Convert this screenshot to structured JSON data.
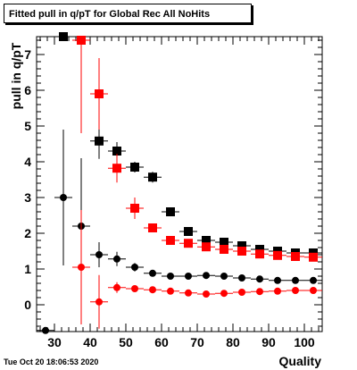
{
  "chart_data": {
    "type": "scatter",
    "title": "Fitted pull in q/pT for Global Rec All NoHits",
    "xlabel": "Quality",
    "ylabel": "pull in q/pT",
    "xlim": [
      25,
      105
    ],
    "ylim": [
      -0.75,
      7.5
    ],
    "xticks": [
      30,
      40,
      50,
      60,
      70,
      80,
      90,
      100
    ],
    "yticks": [
      0,
      1,
      2,
      3,
      4,
      5,
      6,
      7
    ],
    "grid": false,
    "series": [
      {
        "color": "#000000",
        "marker": "square",
        "points": [
          {
            "x": 32.5,
            "y": 7.5,
            "yerr": 0
          },
          {
            "x": 42.5,
            "y": 4.58,
            "yerr": 0.5
          },
          {
            "x": 47.5,
            "y": 4.3,
            "yerr": 0.25
          },
          {
            "x": 52.5,
            "y": 3.85,
            "yerr": 0.15
          },
          {
            "x": 57.5,
            "y": 3.57,
            "yerr": 0.15
          },
          {
            "x": 62.5,
            "y": 2.6,
            "yerr": 0.08
          },
          {
            "x": 67.5,
            "y": 2.05,
            "yerr": 0.05
          },
          {
            "x": 72.5,
            "y": 1.8,
            "yerr": 0.05
          },
          {
            "x": 77.5,
            "y": 1.75,
            "yerr": 0.04
          },
          {
            "x": 82.5,
            "y": 1.65,
            "yerr": 0.04
          },
          {
            "x": 87.5,
            "y": 1.55,
            "yerr": 0.03
          },
          {
            "x": 92.5,
            "y": 1.5,
            "yerr": 0.03
          },
          {
            "x": 97.5,
            "y": 1.45,
            "yerr": 0.03
          },
          {
            "x": 102.5,
            "y": 1.45,
            "yerr": 0.03
          }
        ]
      },
      {
        "color": "#ff0000",
        "marker": "square",
        "points": [
          {
            "x": 37.5,
            "y": 7.4,
            "yerr": 2.6
          },
          {
            "x": 42.5,
            "y": 5.9,
            "yerr": 1.0
          },
          {
            "x": 47.5,
            "y": 3.82,
            "yerr": 0.4
          },
          {
            "x": 52.5,
            "y": 2.7,
            "yerr": 0.3
          },
          {
            "x": 57.5,
            "y": 2.15,
            "yerr": 0.1
          },
          {
            "x": 62.5,
            "y": 1.8,
            "yerr": 0.07
          },
          {
            "x": 67.5,
            "y": 1.72,
            "yerr": 0.05
          },
          {
            "x": 72.5,
            "y": 1.62,
            "yerr": 0.04
          },
          {
            "x": 77.5,
            "y": 1.55,
            "yerr": 0.04
          },
          {
            "x": 82.5,
            "y": 1.5,
            "yerr": 0.03
          },
          {
            "x": 87.5,
            "y": 1.42,
            "yerr": 0.03
          },
          {
            "x": 92.5,
            "y": 1.38,
            "yerr": 0.03
          },
          {
            "x": 97.5,
            "y": 1.35,
            "yerr": 0.03
          },
          {
            "x": 102.5,
            "y": 1.33,
            "yerr": 0.03
          }
        ]
      },
      {
        "color": "#000000",
        "marker": "circle",
        "points": [
          {
            "x": 27.5,
            "y": -0.72,
            "yerr": 0
          },
          {
            "x": 32.5,
            "y": 3.0,
            "yerr": 1.9
          },
          {
            "x": 37.5,
            "y": 2.2,
            "yerr": 1.9
          },
          {
            "x": 42.5,
            "y": 1.4,
            "yerr": 0.35
          },
          {
            "x": 47.5,
            "y": 1.28,
            "yerr": 0.2
          },
          {
            "x": 52.5,
            "y": 1.05,
            "yerr": 0.12
          },
          {
            "x": 57.5,
            "y": 0.88,
            "yerr": 0.08
          },
          {
            "x": 62.5,
            "y": 0.8,
            "yerr": 0.06
          },
          {
            "x": 67.5,
            "y": 0.8,
            "yerr": 0.05
          },
          {
            "x": 72.5,
            "y": 0.82,
            "yerr": 0.04
          },
          {
            "x": 77.5,
            "y": 0.8,
            "yerr": 0.04
          },
          {
            "x": 82.5,
            "y": 0.75,
            "yerr": 0.03
          },
          {
            "x": 87.5,
            "y": 0.72,
            "yerr": 0.03
          },
          {
            "x": 92.5,
            "y": 0.68,
            "yerr": 0.03
          },
          {
            "x": 97.5,
            "y": 0.68,
            "yerr": 0.03
          },
          {
            "x": 102.5,
            "y": 0.68,
            "yerr": 0.03
          }
        ]
      },
      {
        "color": "#ff0000",
        "marker": "circle",
        "points": [
          {
            "x": 37.5,
            "y": 1.05,
            "yerr": 1.6
          },
          {
            "x": 42.5,
            "y": 0.08,
            "yerr": 0.75
          },
          {
            "x": 47.5,
            "y": 0.48,
            "yerr": 0.15
          },
          {
            "x": 52.5,
            "y": 0.45,
            "yerr": 0.07
          },
          {
            "x": 57.5,
            "y": 0.42,
            "yerr": 0.05
          },
          {
            "x": 62.5,
            "y": 0.38,
            "yerr": 0.04
          },
          {
            "x": 67.5,
            "y": 0.33,
            "yerr": 0.04
          },
          {
            "x": 72.5,
            "y": 0.3,
            "yerr": 0.03
          },
          {
            "x": 77.5,
            "y": 0.32,
            "yerr": 0.03
          },
          {
            "x": 82.5,
            "y": 0.35,
            "yerr": 0.03
          },
          {
            "x": 87.5,
            "y": 0.37,
            "yerr": 0.03
          },
          {
            "x": 92.5,
            "y": 0.38,
            "yerr": 0.03
          },
          {
            "x": 97.5,
            "y": 0.4,
            "yerr": 0.03
          },
          {
            "x": 102.5,
            "y": 0.4,
            "yerr": 0.03
          }
        ]
      }
    ]
  },
  "footer": {
    "timestamp": "Tue Oct 20 18:06:53 2020"
  }
}
